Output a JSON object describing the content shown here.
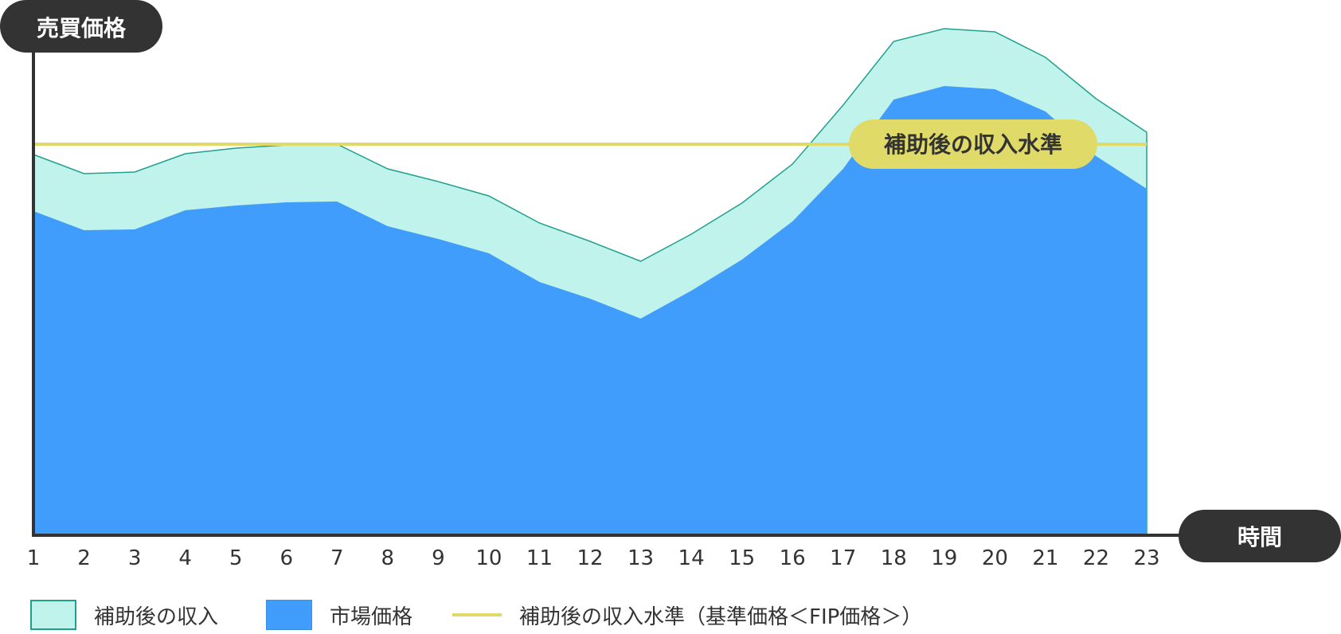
{
  "chart_data": {
    "type": "area",
    "ylabel": "売買価格",
    "xlabel": "時間",
    "categories": [
      "1",
      "2",
      "3",
      "4",
      "5",
      "6",
      "7",
      "8",
      "9",
      "10",
      "11",
      "12",
      "13",
      "14",
      "15",
      "16",
      "17",
      "18",
      "19",
      "20",
      "21",
      "22",
      "23"
    ],
    "ylim": [
      0,
      640
    ],
    "series": [
      {
        "name": "市場価格",
        "color": "#409dfc",
        "values": [
          407,
          383,
          384,
          408,
          414,
          418,
          419,
          388,
          372,
          354,
          318,
          297,
          272,
          307,
          346,
          394,
          460,
          547,
          564,
          560,
          532,
          476,
          435
        ]
      },
      {
        "name": "補助後の収入",
        "color": "#c0f3ec",
        "values": [
          478,
          454,
          456,
          479,
          486,
          490,
          491,
          460,
          444,
          426,
          392,
          369,
          344,
          378,
          417,
          466,
          540,
          620,
          636,
          632,
          600,
          548,
          506
        ]
      }
    ],
    "reference_line": {
      "name": "補助後の収入水準（基準価格＜FIP価格＞）",
      "label": "補助後の収入水準",
      "value": 491,
      "color": "#e0db68"
    },
    "grid": false,
    "legend_position": "bottom-left",
    "colors": {
      "axis": "#333333",
      "pill_bg": "#333333",
      "pill_text": "#ffffff",
      "area_stroke": "#22a08f"
    }
  },
  "legend": {
    "items": [
      {
        "label": "補助後の収入"
      },
      {
        "label": "市場価格"
      },
      {
        "label": "補助後の収入水準（基準価格＜FIP価格＞）"
      }
    ]
  }
}
